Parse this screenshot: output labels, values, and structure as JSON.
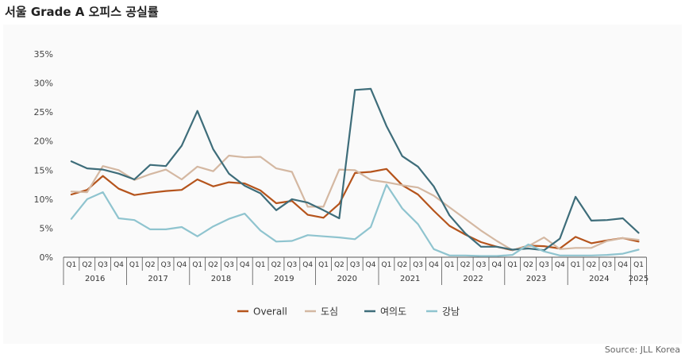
{
  "header": {
    "title": "서울 Grade A 오피스 공실률"
  },
  "footer": {
    "source": "Source: JLL Korea"
  },
  "chart_data": {
    "type": "line",
    "title": "서울 Grade A 오피스 공실률",
    "xlabel": "",
    "ylabel": "",
    "ylim": [
      0,
      35
    ],
    "y_ticks": [
      "0%",
      "5%",
      "10%",
      "15%",
      "20%",
      "25%",
      "30%",
      "35%"
    ],
    "grid": false,
    "legend_position": "bottom",
    "categories": [
      "Q1",
      "Q2",
      "Q3",
      "Q4",
      "Q1",
      "Q2",
      "Q3",
      "Q4",
      "Q1",
      "Q2",
      "Q3",
      "Q4",
      "Q1",
      "Q2",
      "Q3",
      "Q4",
      "Q1",
      "Q2",
      "Q3",
      "Q4",
      "Q1",
      "Q2",
      "Q3",
      "Q4",
      "Q1",
      "Q2",
      "Q3",
      "Q4",
      "Q1",
      "Q2",
      "Q3",
      "Q4",
      "Q1",
      "Q2",
      "Q3",
      "Q4",
      "Q1"
    ],
    "years": [
      "2016",
      "2017",
      "2018",
      "2019",
      "2020",
      "2021",
      "2022",
      "2023",
      "2024",
      "2025"
    ],
    "series": [
      {
        "name": "Overall",
        "color": "#b5541c",
        "values": [
          10.8,
          11.6,
          14.0,
          11.8,
          10.7,
          11.1,
          11.4,
          11.6,
          13.4,
          12.2,
          12.9,
          12.7,
          11.5,
          9.3,
          9.7,
          7.3,
          6.8,
          9.2,
          14.5,
          14.7,
          15.2,
          12.4,
          10.8,
          8.0,
          5.4,
          3.9,
          2.6,
          1.8,
          1.2,
          2.0,
          1.9,
          1.5,
          3.5,
          2.4,
          2.9,
          3.3,
          2.7
        ]
      },
      {
        "name": "도심",
        "color": "#d4b8a2",
        "values": [
          11.3,
          11.2,
          15.7,
          15.0,
          13.3,
          14.3,
          15.1,
          13.4,
          15.6,
          14.8,
          17.5,
          17.2,
          17.3,
          15.3,
          14.7,
          8.7,
          8.7,
          15.1,
          15.0,
          13.3,
          12.9,
          12.4,
          12.0,
          10.6,
          8.6,
          6.6,
          4.6,
          2.8,
          1.2,
          1.9,
          3.4,
          1.4,
          1.6,
          1.6,
          2.8,
          3.3,
          3.0
        ]
      },
      {
        "name": "여의도",
        "color": "#3e6d7a",
        "values": [
          16.5,
          15.3,
          15.1,
          14.4,
          13.4,
          15.9,
          15.7,
          19.2,
          25.2,
          18.6,
          14.4,
          12.3,
          11.0,
          8.1,
          10.0,
          9.4,
          8.1,
          6.7,
          28.8,
          29.0,
          22.6,
          17.4,
          15.6,
          12.2,
          7.2,
          4.1,
          1.8,
          1.8,
          1.3,
          1.5,
          1.2,
          3.2,
          10.4,
          6.3,
          6.4,
          6.7,
          4.2
        ]
      },
      {
        "name": "강남",
        "color": "#8fc4cf",
        "values": [
          6.6,
          10.0,
          11.2,
          6.7,
          6.4,
          4.8,
          4.8,
          5.2,
          3.6,
          5.3,
          6.6,
          7.5,
          4.6,
          2.7,
          2.8,
          3.8,
          3.6,
          3.4,
          3.1,
          5.2,
          12.5,
          8.4,
          5.7,
          1.4,
          0.3,
          0.3,
          0.2,
          0.2,
          0.4,
          2.2,
          1.0,
          0.3,
          0.3,
          0.3,
          0.4,
          0.6,
          1.3
        ]
      }
    ]
  }
}
